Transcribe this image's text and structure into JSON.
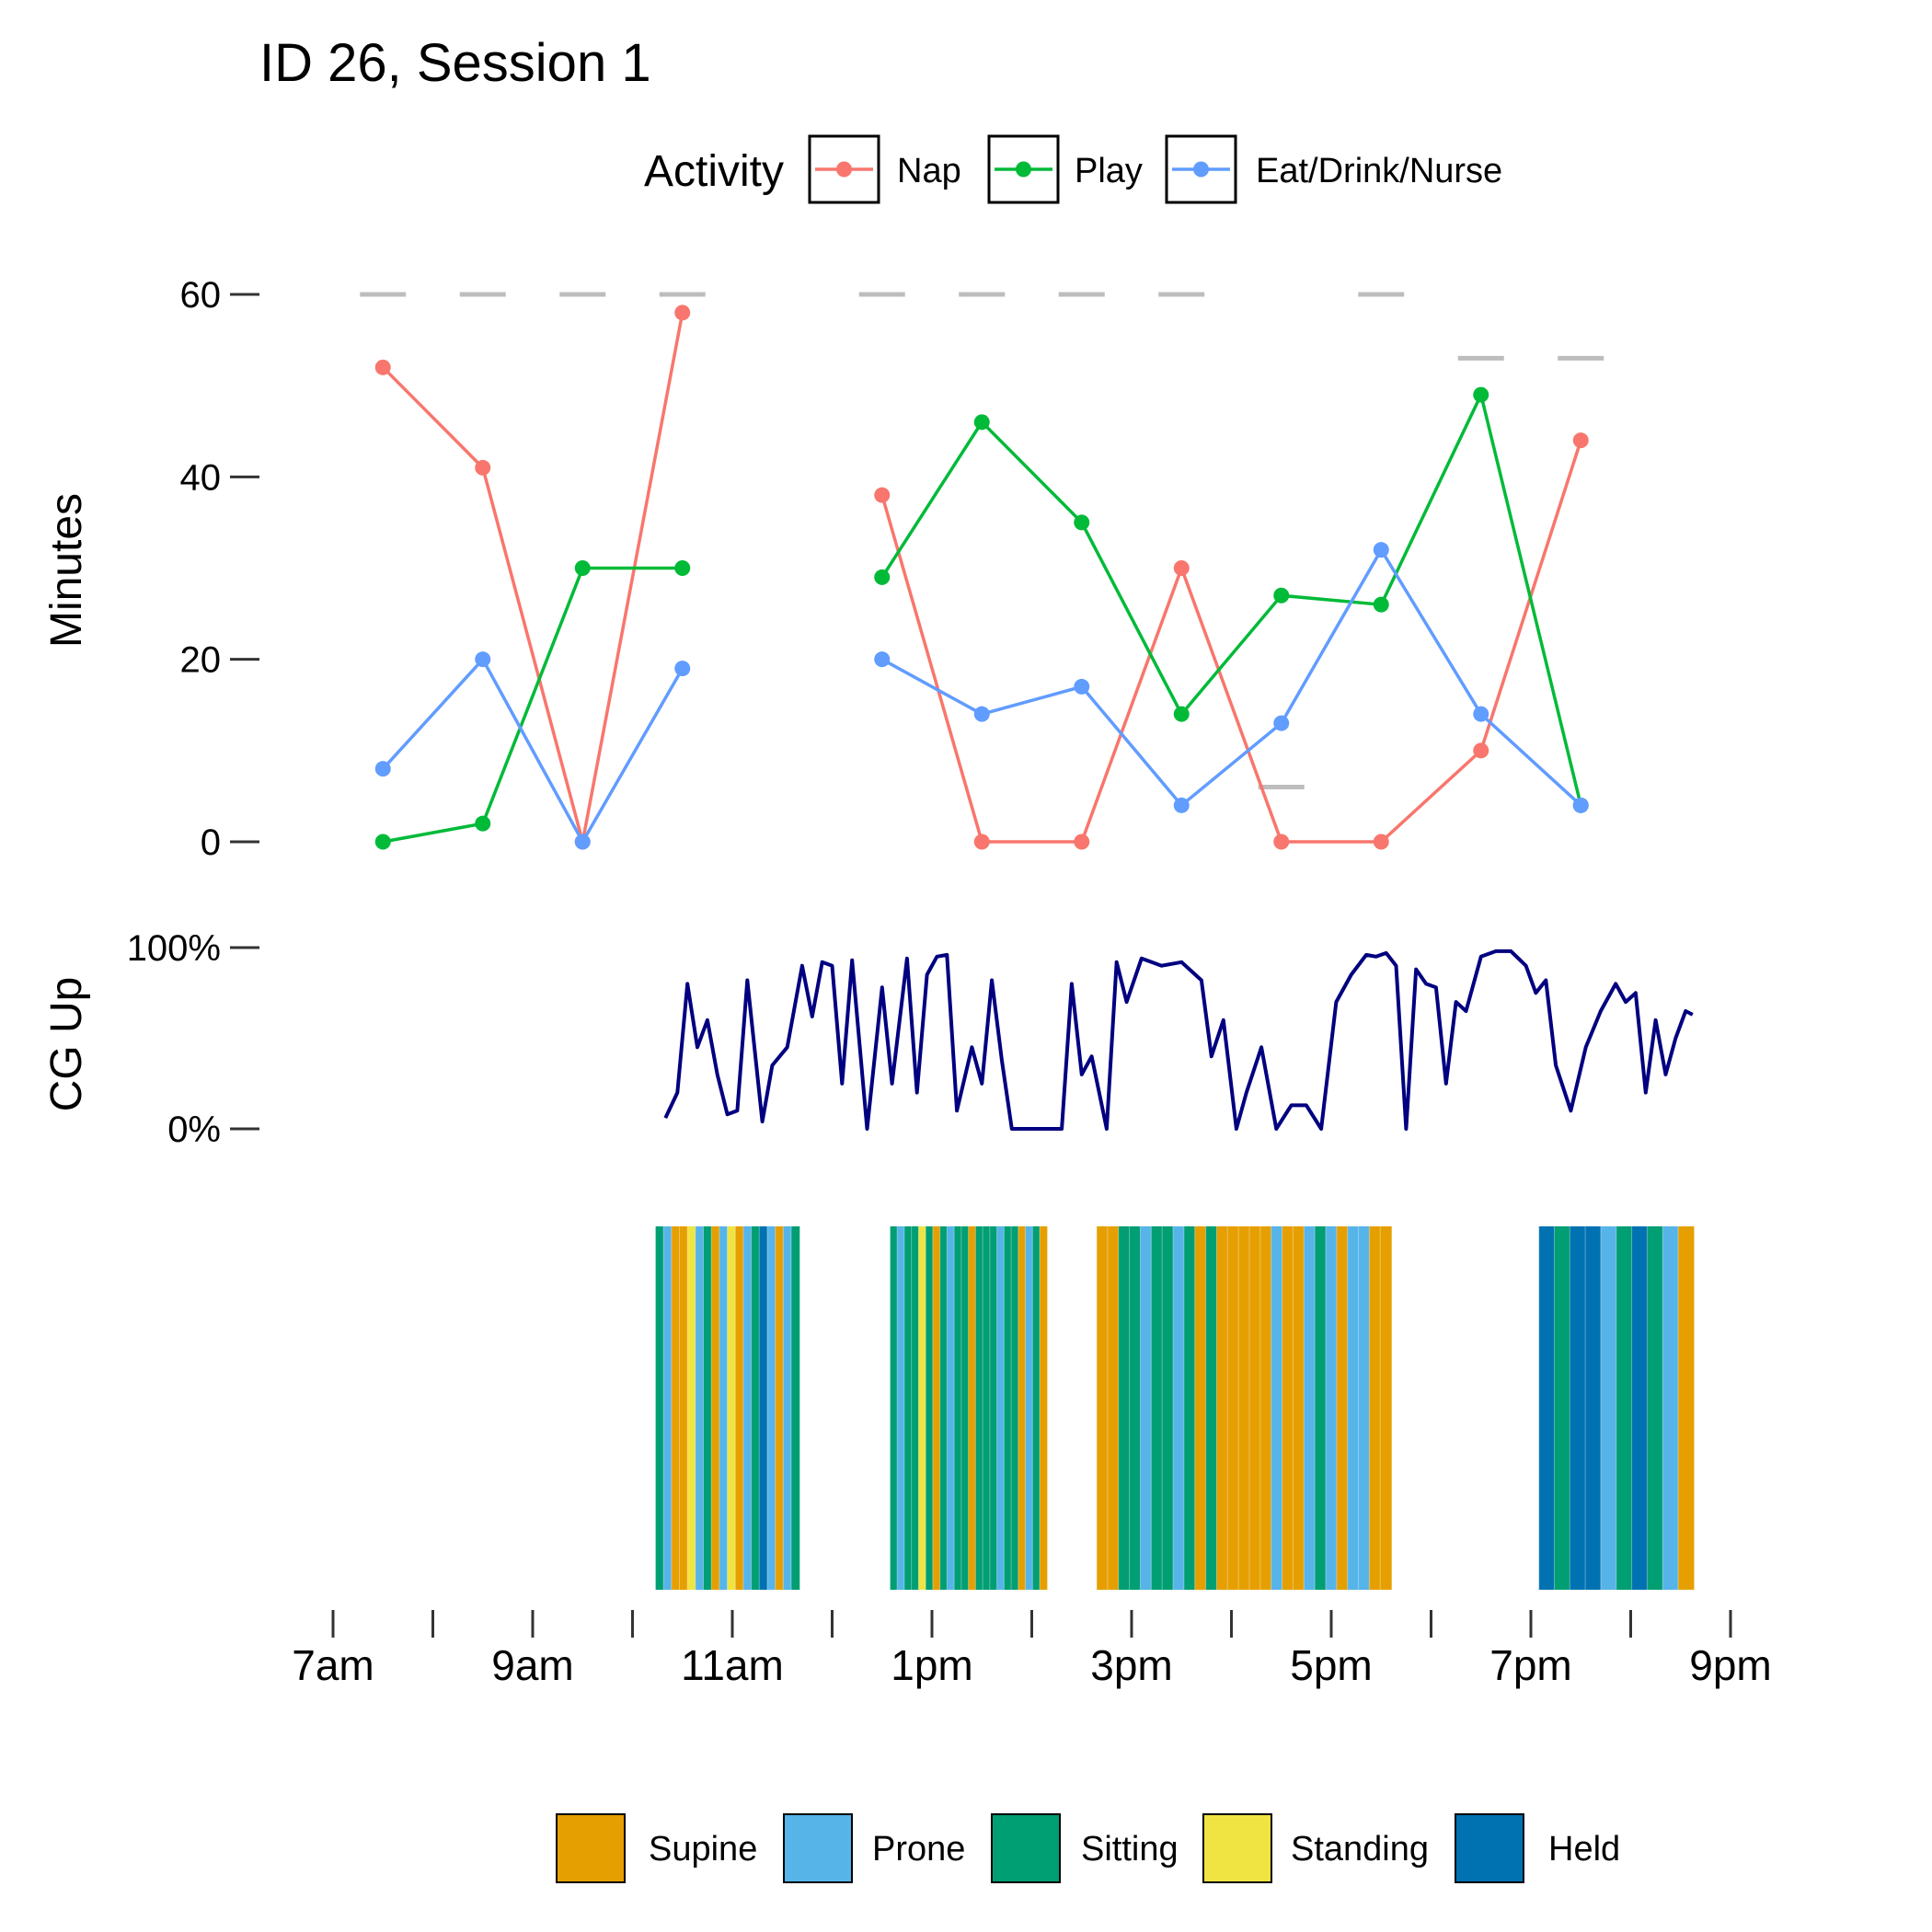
{
  "chart_data": [
    {
      "type": "line",
      "title": "ID 26, Session 1",
      "ylabel": "Minutes",
      "ylim": [
        0,
        60
      ],
      "yticks": [
        0,
        20,
        40,
        60
      ],
      "x_hours": [
        7.5,
        8.5,
        9.5,
        10.5,
        12.5,
        13.5,
        14.5,
        15.5,
        16.5,
        17.5,
        18.5,
        19.5
      ],
      "series": [
        {
          "name": "Nap",
          "color": "#F8766D",
          "values": [
            52,
            41,
            0,
            58,
            38,
            0,
            0,
            30,
            0,
            0,
            10,
            44
          ]
        },
        {
          "name": "Play",
          "color": "#00BA38",
          "values": [
            0,
            2,
            30,
            30,
            29,
            46,
            35,
            14,
            27,
            26,
            49,
            4
          ]
        },
        {
          "name": "Eat/Drink/Nurse",
          "color": "#619CFF",
          "values": [
            8,
            20,
            0,
            19,
            20,
            14,
            17,
            4,
            13,
            32,
            14,
            4
          ]
        }
      ],
      "legend_title": "Activity",
      "reference_totals": [
        {
          "hour": 7.5,
          "value": 60
        },
        {
          "hour": 8.5,
          "value": 60
        },
        {
          "hour": 9.5,
          "value": 60
        },
        {
          "hour": 10.5,
          "value": 60
        },
        {
          "hour": 12.5,
          "value": 60
        },
        {
          "hour": 13.5,
          "value": 60
        },
        {
          "hour": 14.5,
          "value": 60
        },
        {
          "hour": 15.5,
          "value": 60
        },
        {
          "hour": 16.5,
          "value": 6
        },
        {
          "hour": 17.5,
          "value": 60
        },
        {
          "hour": 18.5,
          "value": 53
        },
        {
          "hour": 19.5,
          "value": 53
        }
      ]
    },
    {
      "type": "line",
      "ylabel": "CG Up",
      "ylim": [
        0,
        1
      ],
      "ytick_labels": [
        "0%",
        "100%"
      ],
      "color": "#000080",
      "x_hours": [
        10.33,
        10.45,
        10.55,
        10.65,
        10.75,
        10.85,
        10.95,
        11.05,
        11.15,
        11.3,
        11.4,
        11.55,
        11.7,
        11.8,
        11.9,
        12.0,
        12.1,
        12.2,
        12.35,
        12.5,
        12.6,
        12.75,
        12.85,
        12.95,
        13.05,
        13.15,
        13.25,
        13.4,
        13.5,
        13.6,
        13.7,
        13.8,
        13.92,
        14.05,
        14.15,
        14.3,
        14.4,
        14.5,
        14.6,
        14.75,
        14.85,
        14.95,
        15.1,
        15.3,
        15.5,
        15.7,
        15.8,
        15.92,
        16.05,
        16.15,
        16.3,
        16.45,
        16.6,
        16.75,
        16.9,
        17.05,
        17.2,
        17.35,
        17.45,
        17.55,
        17.65,
        17.75,
        17.85,
        17.95,
        18.05,
        18.15,
        18.25,
        18.35,
        18.5,
        18.65,
        18.8,
        18.95,
        19.05,
        19.15,
        19.25,
        19.4,
        19.55,
        19.7,
        19.85,
        19.95,
        20.05,
        20.15,
        20.25,
        20.35,
        20.45,
        20.55,
        20.62
      ],
      "values": [
        0.06,
        0.2,
        0.8,
        0.45,
        0.6,
        0.3,
        0.08,
        0.1,
        0.82,
        0.04,
        0.35,
        0.45,
        0.9,
        0.62,
        0.92,
        0.9,
        0.25,
        0.93,
        0.0,
        0.78,
        0.25,
        0.94,
        0.2,
        0.85,
        0.95,
        0.96,
        0.1,
        0.45,
        0.25,
        0.82,
        0.38,
        0.0,
        0.0,
        0.0,
        0.0,
        0.0,
        0.8,
        0.3,
        0.4,
        0.0,
        0.92,
        0.7,
        0.94,
        0.9,
        0.92,
        0.82,
        0.4,
        0.6,
        0.0,
        0.2,
        0.45,
        0.0,
        0.13,
        0.13,
        0.0,
        0.7,
        0.85,
        0.96,
        0.95,
        0.97,
        0.9,
        0.0,
        0.88,
        0.8,
        0.78,
        0.25,
        0.7,
        0.65,
        0.95,
        0.98,
        0.98,
        0.9,
        0.75,
        0.82,
        0.35,
        0.1,
        0.45,
        0.65,
        0.8,
        0.7,
        0.75,
        0.2,
        0.6,
        0.3,
        0.5,
        0.65,
        0.63
      ]
    },
    {
      "type": "area",
      "legend": [
        "Supine",
        "Prone",
        "Sitting",
        "Standing",
        "Held"
      ],
      "colors": {
        "Supine": "#E69F00",
        "Prone": "#56B4E9",
        "Sitting": "#009E73",
        "Standing": "#F0E442",
        "Held": "#0072B2"
      },
      "segments_hours": [
        {
          "start": 10.23,
          "end": 11.67,
          "mix": [
            "Sitting",
            "Prone",
            "Supine",
            "Supine",
            "Standing",
            "Prone",
            "Sitting",
            "Supine",
            "Prone",
            "Standing",
            "Supine",
            "Prone",
            "Sitting",
            "Held",
            "Prone",
            "Supine",
            "Prone",
            "Sitting"
          ]
        },
        {
          "start": 12.58,
          "end": 14.15,
          "mix": [
            "Sitting",
            "Prone",
            "Sitting",
            "Sitting",
            "Standing",
            "Sitting",
            "Supine",
            "Sitting",
            "Prone",
            "Sitting",
            "Sitting",
            "Supine",
            "Sitting",
            "Sitting",
            "Sitting",
            "Prone",
            "Sitting",
            "Sitting",
            "Supine",
            "Prone",
            "Sitting",
            "Supine"
          ]
        },
        {
          "start": 14.65,
          "end": 17.6,
          "mix": [
            "Supine",
            "Supine",
            "Sitting",
            "Sitting",
            "Prone",
            "Sitting",
            "Sitting",
            "Prone",
            "Sitting",
            "Supine",
            "Sitting",
            "Supine",
            "Supine",
            "Supine",
            "Supine",
            "Supine",
            "Prone",
            "Supine",
            "Supine",
            "Prone",
            "Sitting",
            "Prone",
            "Supine",
            "Prone",
            "Prone",
            "Supine",
            "Supine"
          ]
        },
        {
          "start": 19.08,
          "end": 20.63,
          "mix": [
            "Held",
            "Sitting",
            "Held",
            "Held",
            "Prone",
            "Sitting",
            "Held",
            "Sitting",
            "Prone",
            "Supine"
          ]
        }
      ]
    }
  ],
  "x_axis": {
    "tick_hours": [
      7,
      8,
      9,
      10,
      11,
      12,
      13,
      14,
      15,
      16,
      17,
      18,
      19,
      20,
      21
    ],
    "labels": [
      {
        "hour": 7,
        "text": "7am"
      },
      {
        "hour": 9,
        "text": "9am"
      },
      {
        "hour": 11,
        "text": "11am"
      },
      {
        "hour": 13,
        "text": "1pm"
      },
      {
        "hour": 15,
        "text": "3pm"
      },
      {
        "hour": 17,
        "text": "5pm"
      },
      {
        "hour": 19,
        "text": "7pm"
      },
      {
        "hour": 21,
        "text": "9pm"
      }
    ]
  }
}
